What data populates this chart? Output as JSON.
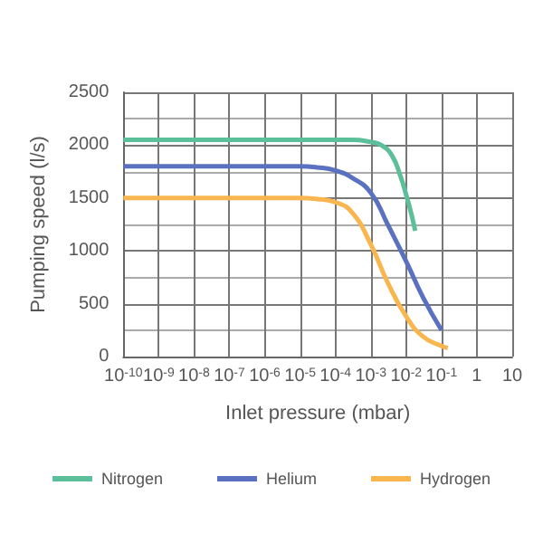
{
  "chart_data": {
    "type": "line",
    "xlabel": "Inlet pressure (mbar)",
    "ylabel": "Pumping speed (l/s)",
    "log": "x",
    "grid": true,
    "legend": "bottom",
    "marker": "none",
    "line_style": "solid",
    "xlim": [
      1e-10,
      10
    ],
    "xticks": [
      {
        "value": 1e-10,
        "label": "10$^{-10}$"
      },
      {
        "value": 1e-09,
        "label": "10$^{-9}$"
      },
      {
        "value": 1e-08,
        "label": "10$^{-8}$"
      },
      {
        "value": 1e-07,
        "label": "10$^{-7}$"
      },
      {
        "value": 1e-06,
        "label": "10$^{-6}$"
      },
      {
        "value": 1e-05,
        "label": "10$^{-5}$"
      },
      {
        "value": 0.0001,
        "label": "10$^{-4}$"
      },
      {
        "value": 0.001,
        "label": "10$^{-3}$"
      },
      {
        "value": 0.01,
        "label": "10$^{-2}$"
      },
      {
        "value": 0.1,
        "label": "10$^{-1}$"
      },
      1,
      10
    ],
    "ylim": [
      0,
      2500
    ],
    "yticks": [
      0,
      500,
      1000,
      1500,
      2000,
      2500
    ],
    "series": [
      {
        "name": "Nitrogen",
        "color": "#5bbf9a",
        "x": [
          1e-10,
          1e-06,
          0.0001,
          0.0003,
          0.001,
          0.002,
          0.004,
          0.007,
          0.01,
          0.014,
          0.018
        ],
        "values": [
          2050,
          2050,
          2050,
          2050,
          2030,
          2000,
          1900,
          1700,
          1530,
          1350,
          1190
        ]
      },
      {
        "name": "Helium",
        "color": "#5a70c0",
        "x": [
          1e-10,
          1e-06,
          1e-05,
          3e-05,
          0.0001,
          0.0003,
          0.001,
          0.003,
          0.01,
          0.03,
          0.1
        ],
        "values": [
          1800,
          1800,
          1800,
          1790,
          1760,
          1690,
          1550,
          1250,
          900,
          560,
          250
        ]
      },
      {
        "name": "Hydrogen",
        "color": "#f9b64f",
        "x": [
          1e-10,
          1e-06,
          1e-05,
          3e-05,
          0.0001,
          0.0003,
          0.001,
          0.003,
          0.01,
          0.03,
          0.1,
          0.15
        ],
        "values": [
          1500,
          1500,
          1500,
          1490,
          1460,
          1360,
          1060,
          700,
          380,
          190,
          100,
          80
        ]
      }
    ]
  }
}
